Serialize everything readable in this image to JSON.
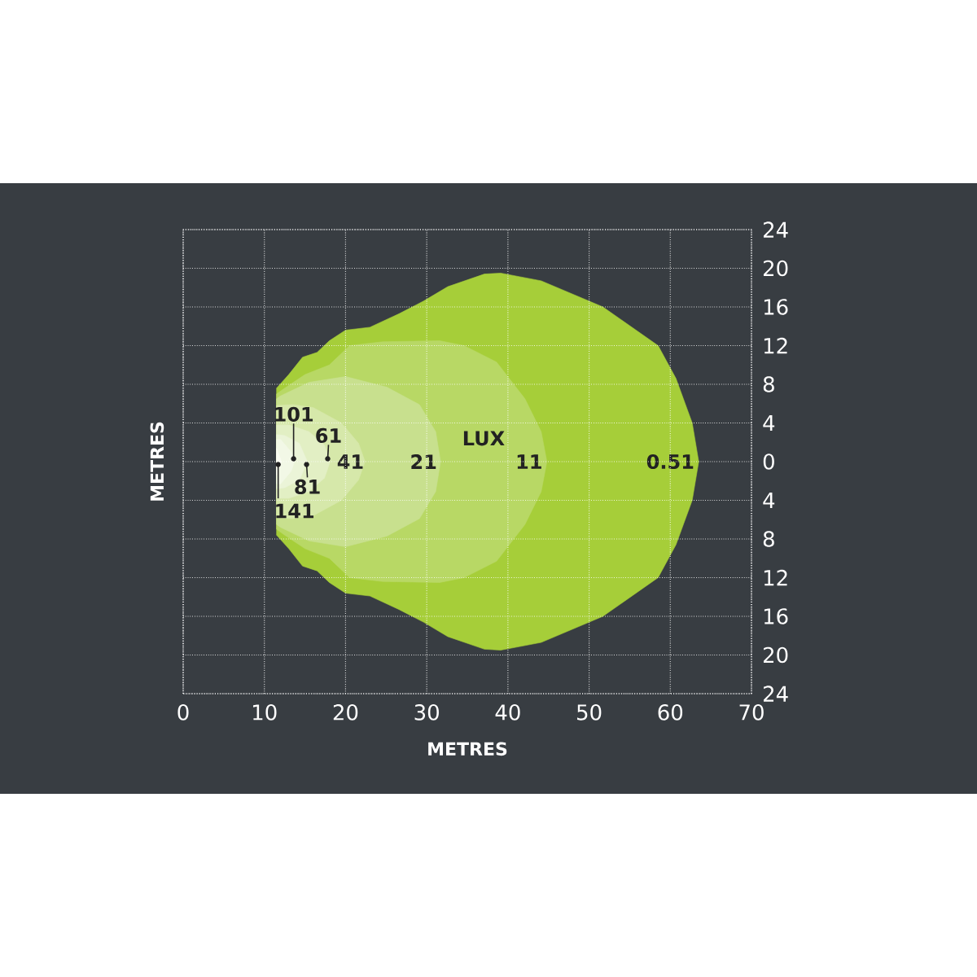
{
  "chart_data": {
    "type": "area",
    "xlabel": "METRES",
    "ylabel": "METRES",
    "xlim": [
      0,
      70
    ],
    "ylim": [
      -24,
      24
    ],
    "xticks": [
      0,
      10,
      20,
      30,
      40,
      50,
      60,
      70
    ],
    "yticks": [
      {
        "value": -24,
        "label": "24"
      },
      {
        "value": -20,
        "label": "20"
      },
      {
        "value": -16,
        "label": "16"
      },
      {
        "value": -12,
        "label": "12"
      },
      {
        "value": -8,
        "label": "8"
      },
      {
        "value": -4,
        "label": "4"
      },
      0,
      4,
      8,
      12,
      16,
      20,
      24
    ],
    "grid": true,
    "series": [
      {
        "color": "#a6ce39",
        "x": [
          11.5,
          13,
          14.7,
          16.5,
          18,
          20,
          23,
          26.6,
          29.6,
          32.6,
          37.1,
          39.1,
          44.1,
          51.7,
          58.5,
          60.7,
          62.7,
          63.5
        ],
        "values": [
          7.6,
          9,
          10.8,
          11.3,
          12.5,
          13.6,
          13.9,
          15.3,
          16.6,
          18.1,
          19.4,
          19.5,
          18.7,
          16,
          12,
          8.6,
          4,
          0
        ]
      },
      {
        "color": "#a6ce39",
        "x": [
          11.5,
          13,
          14.7,
          16.5,
          18,
          20,
          23,
          26.6,
          29.6,
          32.6,
          37.1,
          39.1,
          44.1,
          51.7,
          58.5,
          60.7,
          62.7,
          63.5
        ],
        "values": [
          -7.6,
          -9,
          -10.8,
          -11.3,
          -12.5,
          -13.6,
          -13.9,
          -15.3,
          -16.6,
          -18.1,
          -19.4,
          -19.5,
          -18.7,
          -16,
          -12,
          -8.6,
          -4,
          0
        ]
      },
      {
        "color": "#b8d865",
        "x": [
          11.5,
          12.5,
          15,
          18,
          20.5,
          24.6,
          31.6,
          34.6,
          38.6,
          42.1,
          44.1,
          44.8
        ],
        "values": [
          7,
          7.6,
          9,
          10,
          12,
          12.4,
          12.5,
          12,
          10.3,
          6.5,
          3.1,
          0
        ]
      },
      {
        "color": "#b8d865",
        "x": [
          11.5,
          12.5,
          15,
          18,
          20.5,
          24.6,
          31.6,
          34.6,
          38.6,
          42.1,
          44.1,
          44.8
        ],
        "values": [
          -7,
          -7.6,
          -9,
          -10,
          -12,
          -12.4,
          -12.5,
          -12,
          -10.3,
          -6.5,
          -3.1,
          0
        ]
      },
      {
        "color": "#c8e08e",
        "x": [
          11.5,
          12,
          15.5,
          20,
          25.1,
          29.1,
          31.1,
          31.7
        ],
        "values": [
          6.5,
          6.8,
          8.2,
          8.8,
          7.7,
          5.9,
          3.1,
          0
        ]
      },
      {
        "color": "#c8e08e",
        "x": [
          11.5,
          12,
          15.5,
          20,
          25.1,
          29.1,
          31.1,
          31.7
        ],
        "values": [
          -6.5,
          -6.8,
          -8.2,
          -8.8,
          -7.7,
          -5.9,
          -3.1,
          0
        ]
      },
      {
        "color": "#d6e8aa",
        "x": [
          11.5,
          13.5,
          16,
          19.5,
          21.6,
          22.4
        ],
        "values": [
          5.8,
          5.9,
          5.6,
          4,
          1.9,
          0
        ]
      },
      {
        "color": "#d6e8aa",
        "x": [
          11.5,
          13.5,
          16,
          19.5,
          21.6,
          22.4
        ],
        "values": [
          -5.8,
          -5.9,
          -5.6,
          -4,
          -1.9,
          0
        ]
      },
      {
        "color": "#e2efc4",
        "x": [
          11.5,
          13,
          15.5,
          17.4,
          18.1
        ],
        "values": [
          3.8,
          3.8,
          3.1,
          1.7,
          0
        ]
      },
      {
        "color": "#e2efc4",
        "x": [
          11.5,
          13,
          15.5,
          17.4,
          18.1
        ],
        "values": [
          -3.8,
          -3.8,
          -3.1,
          -1.7,
          0
        ]
      },
      {
        "color": "#ebf4d8",
        "x": [
          11.5,
          12.5,
          14.3,
          15.3
        ],
        "values": [
          2.8,
          2.7,
          1.9,
          0
        ]
      },
      {
        "color": "#ebf4d8",
        "x": [
          11.5,
          12.5,
          14.3,
          15.3
        ],
        "values": [
          -2.8,
          -2.7,
          -1.9,
          0
        ]
      },
      {
        "color": "#f2f8e6",
        "x": [
          11.5,
          12,
          13.3,
          13.7
        ],
        "values": [
          2.3,
          2.3,
          1,
          0
        ]
      },
      {
        "color": "#f2f8e6",
        "x": [
          11.5,
          12,
          13.3,
          13.7
        ],
        "values": [
          -2.3,
          -2.3,
          -1,
          0
        ]
      },
      {
        "color": "#fafcf2",
        "x": [
          11.5,
          12.1
        ],
        "values": [
          1.4,
          0
        ]
      },
      {
        "color": "#fafcf2",
        "x": [
          11.5,
          12.1
        ],
        "values": [
          -1.4,
          0
        ]
      }
    ],
    "annotations": [
      "LUX",
      "0.51",
      "11",
      "21",
      "41",
      {
        "text": "61",
        "x": 17.8,
        "y": 0.3
      },
      {
        "text": "81",
        "x": 15.2,
        "y": -0.3
      },
      {
        "text": "101",
        "x": 13.6,
        "y": 0.3
      },
      {
        "text": "141",
        "x": 11.7,
        "y": -0.3
      }
    ]
  }
}
